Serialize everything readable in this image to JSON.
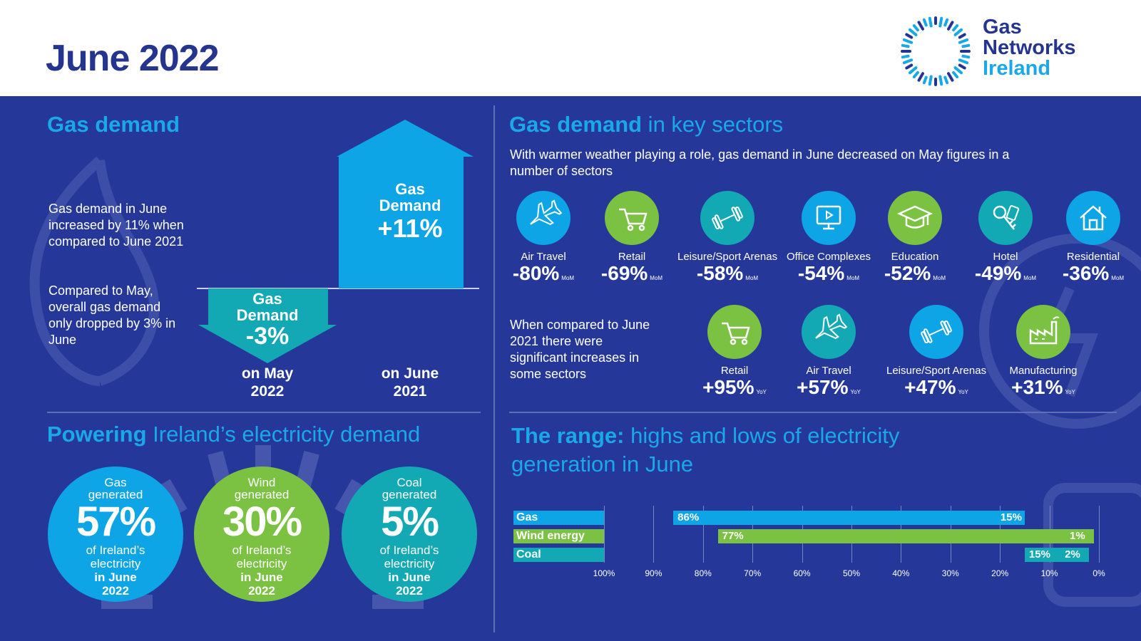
{
  "header": {
    "title": "June 2022",
    "logo": [
      "Gas",
      "Networks",
      "Ireland"
    ]
  },
  "gas_demand": {
    "title": "Gas demand",
    "para1": "Gas demand in June increased by 11% when compared to June 2021",
    "para2": "Compared to May, overall gas demand only dropped by 3% in June",
    "up_arrow": {
      "line1": "Gas",
      "line2": "Demand",
      "value": "+11%"
    },
    "down_arrow": {
      "line1": "Gas",
      "line2": "Demand",
      "value": "-3%"
    },
    "label_may": [
      "on May",
      "2022"
    ],
    "label_june": [
      "on June",
      "2021"
    ]
  },
  "sectors": {
    "title_bold": "Gas demand",
    "title_rest": " in key sectors",
    "intro": "With warmer weather playing a role, gas demand in June decreased on May figures in a number of sectors",
    "mom_tag": "MoM",
    "yoy_tag": "YoY",
    "mom": [
      {
        "name": "Air Travel",
        "value": "-80%",
        "icon": "plane-icon",
        "color": "#0ea5e6"
      },
      {
        "name": "Retail",
        "value": "-69%",
        "icon": "cart-icon",
        "color": "#7bc142"
      },
      {
        "name": "Leisure/Sport Arenas",
        "value": "-58%",
        "icon": "dumbbell-icon",
        "color": "#12a9b5"
      },
      {
        "name": "Office Complexes",
        "value": "-54%",
        "icon": "monitor-icon",
        "color": "#0ea5e6"
      },
      {
        "name": "Education",
        "value": "-52%",
        "icon": "graduation-cap-icon",
        "color": "#7bc142"
      },
      {
        "name": "Hotel",
        "value": "-49%",
        "icon": "key-icon",
        "color": "#12a9b5"
      },
      {
        "name": "Residential",
        "value": "-36%",
        "icon": "house-icon",
        "color": "#0ea5e6"
      }
    ],
    "yoy_intro": "When compared to June 2021 there were significant increases in some sectors",
    "yoy": [
      {
        "name": "Retail",
        "value": "+95%",
        "icon": "cart-icon",
        "color": "#7bc142"
      },
      {
        "name": "Air Travel",
        "value": "+57%",
        "icon": "plane-icon",
        "color": "#12a9b5"
      },
      {
        "name": "Leisure/Sport Arenas",
        "value": "+47%",
        "icon": "dumbbell-icon",
        "color": "#0ea5e6"
      },
      {
        "name": "Manufacturing",
        "value": "+31%",
        "icon": "factory-icon",
        "color": "#7bc142"
      }
    ]
  },
  "powering": {
    "title_bold": "Powering",
    "title_rest": " Ireland’s electricity demand",
    "circles": [
      {
        "line1": "Gas",
        "line2": "generated",
        "pct": "57%",
        "line3": "of Ireland’s",
        "line4": "electricity",
        "line5": "in June",
        "line6": "2022",
        "color": "#0ea5e6"
      },
      {
        "line1": "Wind",
        "line2": "generated",
        "pct": "30%",
        "line3": "of Ireland’s",
        "line4": "electricity",
        "line5": "in June",
        "line6": "2022",
        "color": "#7bc142"
      },
      {
        "line1": "Coal",
        "line2": "generated",
        "pct": "5%",
        "line3": "of Ireland’s",
        "line4": "electricity",
        "line5": "in June",
        "line6": "2022",
        "color": "#12a9b5"
      }
    ]
  },
  "range": {
    "title_bold": "The range:",
    "title_rest": " highs and lows of electricity generation in June"
  },
  "chart_data": {
    "type": "bar",
    "title": "The range: highs and lows of electricity generation in June",
    "xlim": [
      100,
      0
    ],
    "ticks": [
      "100%",
      "90%",
      "80%",
      "70%",
      "60%",
      "50%",
      "40%",
      "30%",
      "20%",
      "10%",
      "0%"
    ],
    "tick_values": [
      100,
      90,
      80,
      70,
      60,
      50,
      40,
      30,
      20,
      10,
      0
    ],
    "series": [
      {
        "name": "Gas",
        "high": 86,
        "low": 15,
        "high_label": "86%",
        "low_label": "15%",
        "color": "#0ea5e6"
      },
      {
        "name": "Wind energy",
        "high": 77,
        "low": 1,
        "high_label": "77%",
        "low_label": "1%",
        "color": "#7bc142"
      },
      {
        "name": "Coal",
        "high": 15,
        "low": 2,
        "high_label": "15%",
        "low_label": "2%",
        "color": "#12a9b5"
      }
    ]
  },
  "colors": {
    "navy": "#25389a",
    "blue": "#0ea5e6",
    "green": "#7bc142",
    "teal": "#12a9b5",
    "title_blue": "#1aa8e8"
  }
}
